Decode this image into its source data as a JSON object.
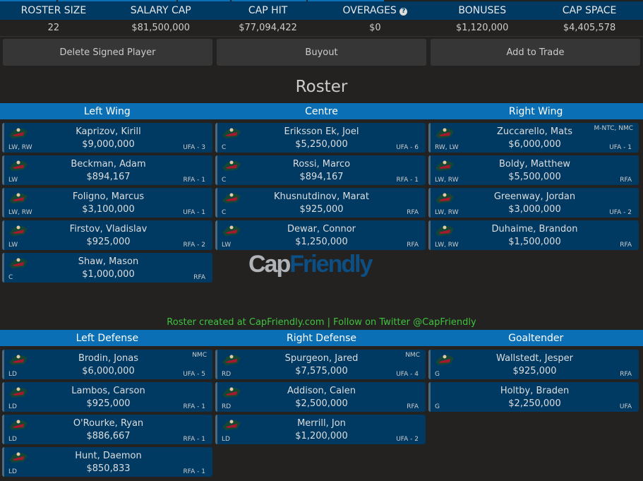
{
  "stats": {
    "headers": [
      "ROSTER SIZE",
      "SALARY CAP",
      "CAP HIT",
      "OVERAGES",
      "BONUSES",
      "CAP SPACE"
    ],
    "values": [
      "22",
      "$81,500,000",
      "$77,094,422",
      "$0",
      "$1,120,000",
      "$4,405,578"
    ],
    "help_icon": "?"
  },
  "buttons": [
    "Delete Signed Player",
    "Buyout",
    "Add to Trade"
  ],
  "title": "Roster",
  "forward_headers": [
    "Left Wing",
    "Centre",
    "Right Wing"
  ],
  "defense_headers": [
    "Left Defense",
    "Right Defense",
    "Goaltender"
  ],
  "footer": "Roster created at CapFriendly.com | Follow on Twitter @CapFriendly",
  "brand": {
    "part1": "Cap",
    "part2": "Friendly"
  },
  "colors": {
    "header": "#0a6fb5",
    "card": "#003a63",
    "footer": "#3fc23f"
  },
  "columns": [
    [
      {
        "name": "Kaprizov, Kirill",
        "salary": "$9,000,000",
        "pos": "LW, RW",
        "status": "UFA - 3",
        "clause": ""
      },
      {
        "name": "Beckman, Adam",
        "salary": "$894,167",
        "pos": "LW",
        "status": "RFA - 1",
        "clause": ""
      },
      {
        "name": "Foligno, Marcus",
        "salary": "$3,100,000",
        "pos": "LW, RW",
        "status": "UFA - 1",
        "clause": ""
      },
      {
        "name": "Firstov, Vladislav",
        "salary": "$925,000",
        "pos": "LW",
        "status": "RFA - 2",
        "clause": ""
      },
      {
        "name": "Shaw, Mason",
        "salary": "$1,000,000",
        "pos": "C",
        "status": "RFA",
        "clause": ""
      }
    ],
    [
      {
        "name": "Eriksson Ek, Joel",
        "salary": "$5,250,000",
        "pos": "C",
        "status": "UFA - 6",
        "clause": ""
      },
      {
        "name": "Rossi, Marco",
        "salary": "$894,167",
        "pos": "C",
        "status": "RFA - 1",
        "clause": ""
      },
      {
        "name": "Khusnutdinov, Marat",
        "salary": "$925,000",
        "pos": "C",
        "status": "RFA",
        "clause": ""
      },
      {
        "name": "Dewar, Connor",
        "salary": "$1,250,000",
        "pos": "LW",
        "status": "RFA",
        "clause": ""
      }
    ],
    [
      {
        "name": "Zuccarello, Mats",
        "salary": "$6,000,000",
        "pos": "RW, LW",
        "status": "UFA - 1",
        "clause": "M-NTC, NMC"
      },
      {
        "name": "Boldy, Matthew",
        "salary": "$5,500,000",
        "pos": "LW, RW",
        "status": "RFA",
        "clause": ""
      },
      {
        "name": "Greenway, Jordan",
        "salary": "$3,000,000",
        "pos": "LW, RW",
        "status": "UFA - 2",
        "clause": ""
      },
      {
        "name": "Duhaime, Brandon",
        "salary": "$1,500,000",
        "pos": "LW, RW",
        "status": "RFA",
        "clause": ""
      }
    ],
    [
      {
        "name": "Brodin, Jonas",
        "salary": "$6,000,000",
        "pos": "LD",
        "status": "UFA - 5",
        "clause": "NMC"
      },
      {
        "name": "Lambos, Carson",
        "salary": "$925,000",
        "pos": "LD",
        "status": "RFA - 1",
        "clause": ""
      },
      {
        "name": "O'Rourke, Ryan",
        "salary": "$886,667",
        "pos": "LD",
        "status": "RFA - 1",
        "clause": ""
      },
      {
        "name": "Hunt, Daemon",
        "salary": "$850,833",
        "pos": "LD",
        "status": "RFA - 1",
        "clause": ""
      }
    ],
    [
      {
        "name": "Spurgeon, Jared",
        "salary": "$7,575,000",
        "pos": "RD",
        "status": "UFA - 4",
        "clause": "NMC"
      },
      {
        "name": "Addison, Calen",
        "salary": "$2,500,000",
        "pos": "RD",
        "status": "RFA",
        "clause": ""
      },
      {
        "name": "Merrill, Jon",
        "salary": "$1,200,000",
        "pos": "LD",
        "status": "UFA - 2",
        "clause": ""
      }
    ],
    [
      {
        "name": "Wallstedt, Jesper",
        "salary": "$925,000",
        "pos": "G",
        "status": "RFA",
        "clause": ""
      },
      {
        "name": "Holtby, Braden",
        "salary": "$2,250,000",
        "pos": "G",
        "status": "UFA",
        "clause": "",
        "nologo": true
      }
    ]
  ]
}
